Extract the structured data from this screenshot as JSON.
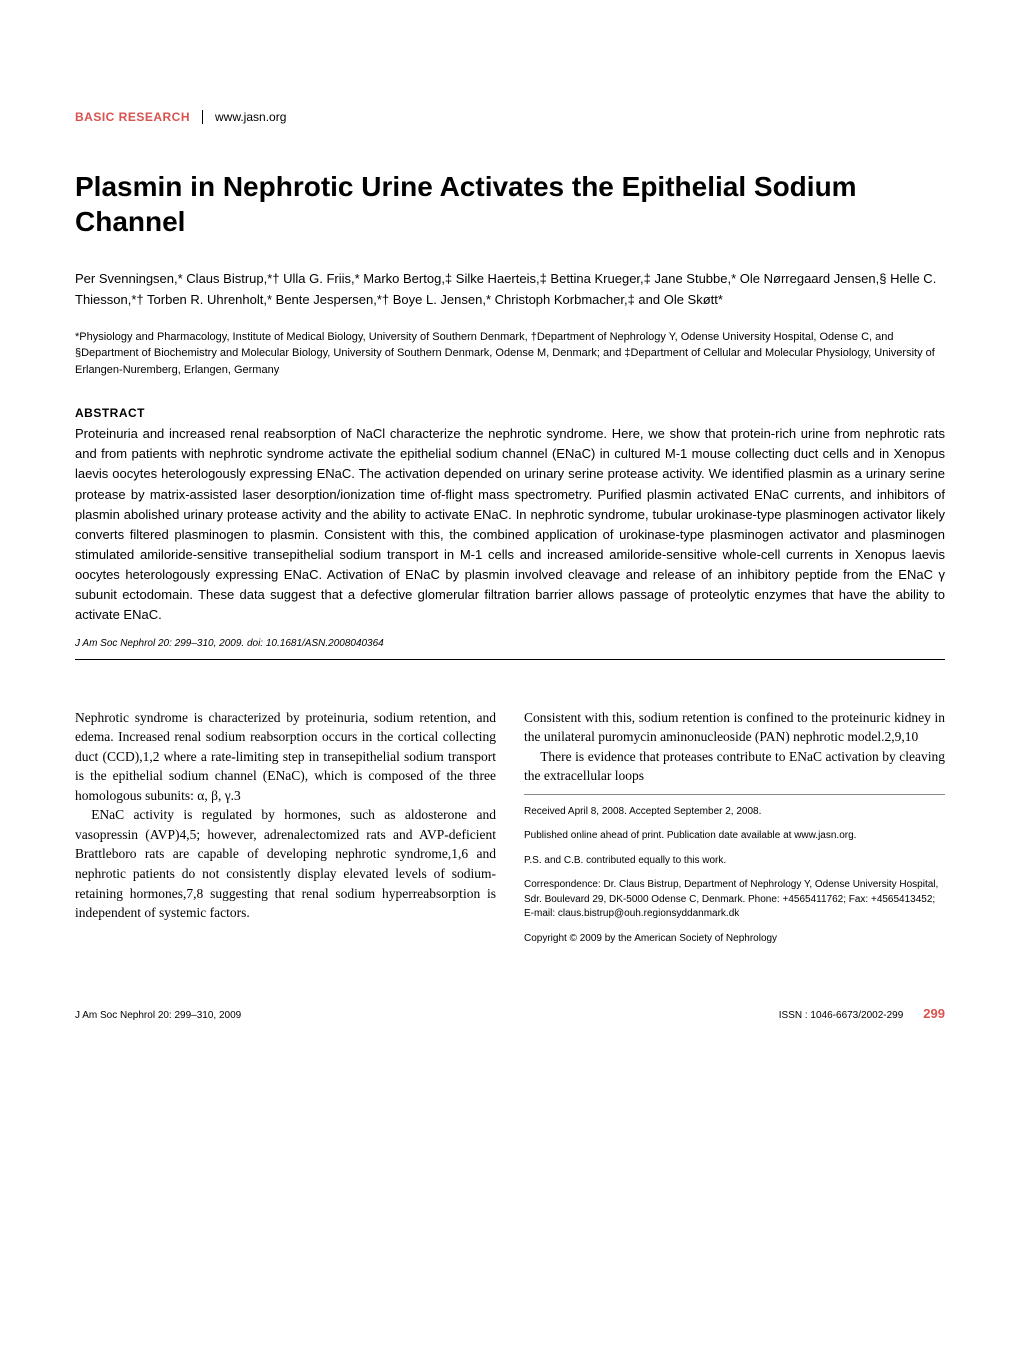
{
  "header": {
    "section_label": "BASIC RESEARCH",
    "url": "www.jasn.org"
  },
  "title": "Plasmin in Nephrotic Urine Activates the Epithelial Sodium Channel",
  "authors": "Per Svenningsen,* Claus Bistrup,*† Ulla G. Friis,* Marko Bertog,‡ Silke Haerteis,‡ Bettina Krueger,‡ Jane Stubbe,* Ole Nørregaard Jensen,§ Helle C. Thiesson,*† Torben R. Uhrenholt,* Bente Jespersen,*† Boye L. Jensen,* Christoph Korbmacher,‡ and Ole Skøtt*",
  "affiliations": "*Physiology and Pharmacology, Institute of Medical Biology, University of Southern Denmark, †Department of Nephrology Y, Odense University Hospital, Odense C, and §Department of Biochemistry and Molecular Biology, University of Southern Denmark, Odense M, Denmark; and ‡Department of Cellular and Molecular Physiology, University of Erlangen-Nuremberg, Erlangen, Germany",
  "abstract": {
    "heading": "ABSTRACT",
    "text": "Proteinuria and increased renal reabsorption of NaCl characterize the nephrotic syndrome. Here, we show that protein-rich urine from nephrotic rats and from patients with nephrotic syndrome activate the epithelial sodium channel (ENaC) in cultured M-1 mouse collecting duct cells and in Xenopus laevis oocytes heterologously expressing ENaC. The activation depended on urinary serine protease activity. We identified plasmin as a urinary serine protease by matrix-assisted laser desorption/ionization time of-flight mass spectrometry. Purified plasmin activated ENaC currents, and inhibitors of plasmin abolished urinary protease activity and the ability to activate ENaC. In nephrotic syndrome, tubular urokinase-type plasminogen activator likely converts filtered plasminogen to plasmin. Consistent with this, the combined application of urokinase-type plasminogen activator and plasminogen stimulated amiloride-sensitive transepithelial sodium transport in M-1 cells and increased amiloride-sensitive whole-cell currents in Xenopus laevis oocytes heterologously expressing ENaC. Activation of ENaC by plasmin involved cleavage and release of an inhibitory peptide from the ENaC γ subunit ectodomain. These data suggest that a defective glomerular filtration barrier allows passage of proteolytic enzymes that have the ability to activate ENaC."
  },
  "citation": "J Am Soc Nephrol 20: 299–310, 2009. doi: 10.1681/ASN.2008040364",
  "body": {
    "left_col": [
      "Nephrotic syndrome is characterized by proteinuria, sodium retention, and edema. Increased renal sodium reabsorption occurs in the cortical collecting duct (CCD),1,2 where a rate-limiting step in transepithelial sodium transport is the epithelial sodium channel (ENaC), which is composed of the three homologous subunits: α, β, γ.3",
      "ENaC activity is regulated by hormones, such as aldosterone and vasopressin (AVP)4,5; however, adrenalectomized rats and AVP-deficient Brattleboro rats are capable of developing nephrotic syndrome,1,6 and nephrotic patients do not consistently display elevated levels of sodium-retaining hormones,7,8 suggesting that renal sodium hyperreabsorption is independent of systemic factors."
    ],
    "right_col": [
      "Consistent with this, sodium retention is confined to the proteinuric kidney in the unilateral puromycin aminonucleoside (PAN) nephrotic model.2,9,10",
      "There is evidence that proteases contribute to ENaC activation by cleaving the extracellular loops"
    ]
  },
  "meta": {
    "received": "Received April 8, 2008. Accepted September 2, 2008.",
    "published": "Published online ahead of print. Publication date available at www.jasn.org.",
    "contribution": "P.S. and C.B. contributed equally to this work.",
    "correspondence": "Correspondence: Dr. Claus Bistrup, Department of Nephrology Y, Odense University Hospital, Sdr. Boulevard 29, DK-5000 Odense C, Denmark. Phone: +4565411762; Fax: +4565413452; E-mail: claus.bistrup@ouh.regionsyddanmark.dk",
    "copyright": "Copyright © 2009 by the American Society of Nephrology"
  },
  "footer": {
    "left": "J Am Soc Nephrol 20: 299–310, 2009",
    "issn": "ISSN : 1046-6673/2002-299",
    "page_num": "299"
  },
  "colors": {
    "accent_red": "#d9534f",
    "text": "#000000",
    "bg": "#ffffff",
    "rule_gray": "#888888"
  },
  "typography": {
    "title_pt": 28,
    "body_pt": 13.5,
    "abstract_pt": 13,
    "authors_pt": 13,
    "affiliations_pt": 11,
    "meta_pt": 10,
    "footer_pt": 10
  }
}
